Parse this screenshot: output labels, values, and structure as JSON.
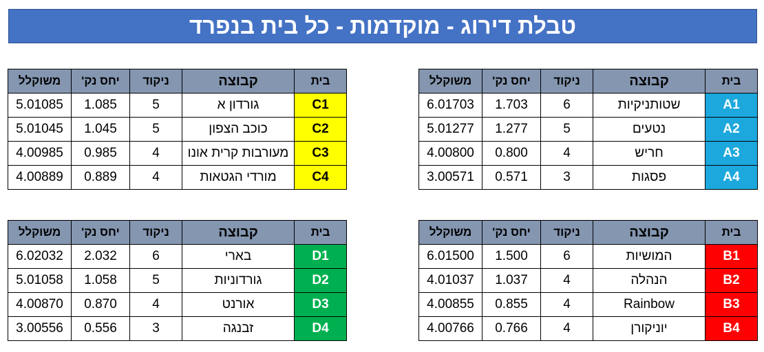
{
  "title": "טבלת דירוג - מוקדמות - כל בית בנפרד",
  "headers": {
    "house": "בית",
    "team": "קבוצה",
    "points": "ניקוד",
    "ratio": "יחס נק'",
    "weighted": "משוקלל"
  },
  "house_colors": {
    "A": "#1CA8DD",
    "B": "#FF0000",
    "C": "#FFFF00",
    "D": "#00B050"
  },
  "groups": {
    "A": [
      {
        "house": "A1",
        "team": "שטותניקיות",
        "points": "6",
        "ratio": "1.703",
        "weighted": "6.01703"
      },
      {
        "house": "A2",
        "team": "נטעים",
        "points": "5",
        "ratio": "1.277",
        "weighted": "5.01277"
      },
      {
        "house": "A3",
        "team": "חריש",
        "points": "4",
        "ratio": "0.800",
        "weighted": "4.00800"
      },
      {
        "house": "A4",
        "team": "פסגות",
        "points": "3",
        "ratio": "0.571",
        "weighted": "3.00571"
      }
    ],
    "B": [
      {
        "house": "B1",
        "team": "המושיות",
        "points": "6",
        "ratio": "1.500",
        "weighted": "6.01500"
      },
      {
        "house": "B2",
        "team": "הנהלה",
        "points": "4",
        "ratio": "1.037",
        "weighted": "4.01037"
      },
      {
        "house": "B3",
        "team": "Rainbow",
        "points": "4",
        "ratio": "0.855",
        "weighted": "4.00855"
      },
      {
        "house": "B4",
        "team": "יוניקורן",
        "points": "4",
        "ratio": "0.766",
        "weighted": "4.00766"
      }
    ],
    "C": [
      {
        "house": "C1",
        "team": "גורדון א",
        "points": "5",
        "ratio": "1.085",
        "weighted": "5.01085"
      },
      {
        "house": "C2",
        "team": "כוכב הצפון",
        "points": "5",
        "ratio": "1.045",
        "weighted": "5.01045"
      },
      {
        "house": "C3",
        "team": "מעורבות קרית אונו",
        "points": "4",
        "ratio": "0.985",
        "weighted": "4.00985"
      },
      {
        "house": "C4",
        "team": "מורדי הגטאות",
        "points": "4",
        "ratio": "0.889",
        "weighted": "4.00889"
      }
    ],
    "D": [
      {
        "house": "D1",
        "team": "בארי",
        "points": "6",
        "ratio": "2.032",
        "weighted": "6.02032"
      },
      {
        "house": "D2",
        "team": "גורדוניות",
        "points": "5",
        "ratio": "1.058",
        "weighted": "5.01058"
      },
      {
        "house": "D3",
        "team": "אורנט",
        "points": "4",
        "ratio": "0.870",
        "weighted": "4.00870"
      },
      {
        "house": "D4",
        "team": "זבנגה",
        "points": "3",
        "ratio": "0.556",
        "weighted": "3.00556"
      }
    ]
  }
}
